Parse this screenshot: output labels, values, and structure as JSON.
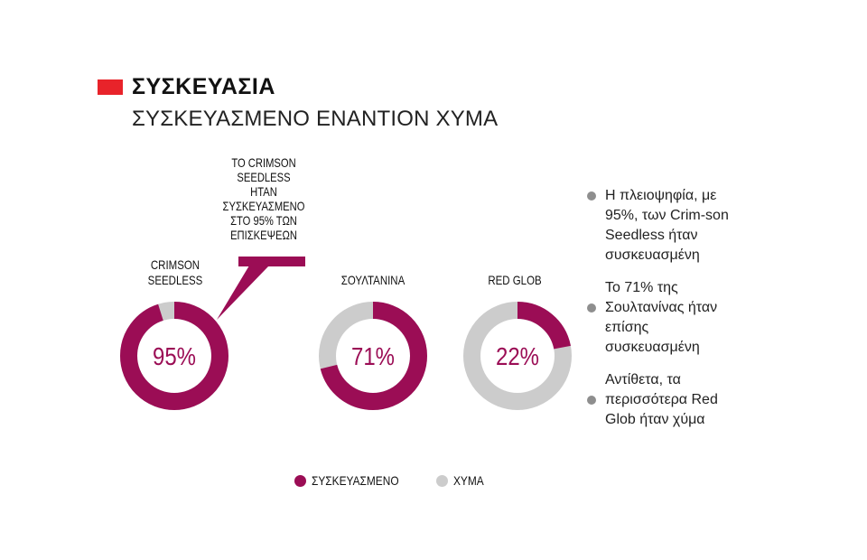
{
  "header": {
    "title": "ΣΥΣΚΕΥΑΣΙΑ",
    "subtitle": "ΣΥΣΚΕΥΑΣΜΕΝΟ ΕΝΑΝΤΙΟΝ ΧΥΜΑ",
    "accent_color": "#e8232a"
  },
  "colors": {
    "packaged": "#9b0d55",
    "bulk": "#cccccc",
    "note_bullet": "#8e8e8e"
  },
  "callout": {
    "lines": [
      "ΤΟ CRIMSON",
      "SEEDLESS",
      "ΗΤΑΝ",
      "ΣΥΣΚΕΥΑΣΜΕΝΟ",
      "ΣΤΟ 95% ΤΩΝ",
      "ΕΠΙΣΚΕΨΕΩΝ"
    ]
  },
  "notes": [
    "Η πλειοψηφία, με 95%, των Crim-son Seedless ήταν συσκευασμένη",
    "Το 71% της Σουλτανίνας ήταν επίσης συσκευασμένη",
    "Αντίθετα, τα περισσότερα Red Glob ήταν χύμα"
  ],
  "chart_data": {
    "type": "pie",
    "variant": "donut",
    "categories": [
      "CRIMSON SEEDLESS",
      "ΣΟΥΛΤΑΝΙΝΑ",
      "RED GLOB"
    ],
    "series": [
      {
        "name": "ΣΥΣΚΕΥΑΣΜΕΝΟ",
        "values": [
          95,
          71,
          22
        ]
      },
      {
        "name": "ΧΥΜΑ",
        "values": [
          5,
          29,
          78
        ]
      }
    ],
    "center_labels": [
      "95%",
      "71%",
      "22%"
    ],
    "legend": [
      "ΣΥΣΚΕΥΑΣΜΕΝΟ",
      "ΧΥΜΑ"
    ],
    "legend_position": "bottom"
  }
}
